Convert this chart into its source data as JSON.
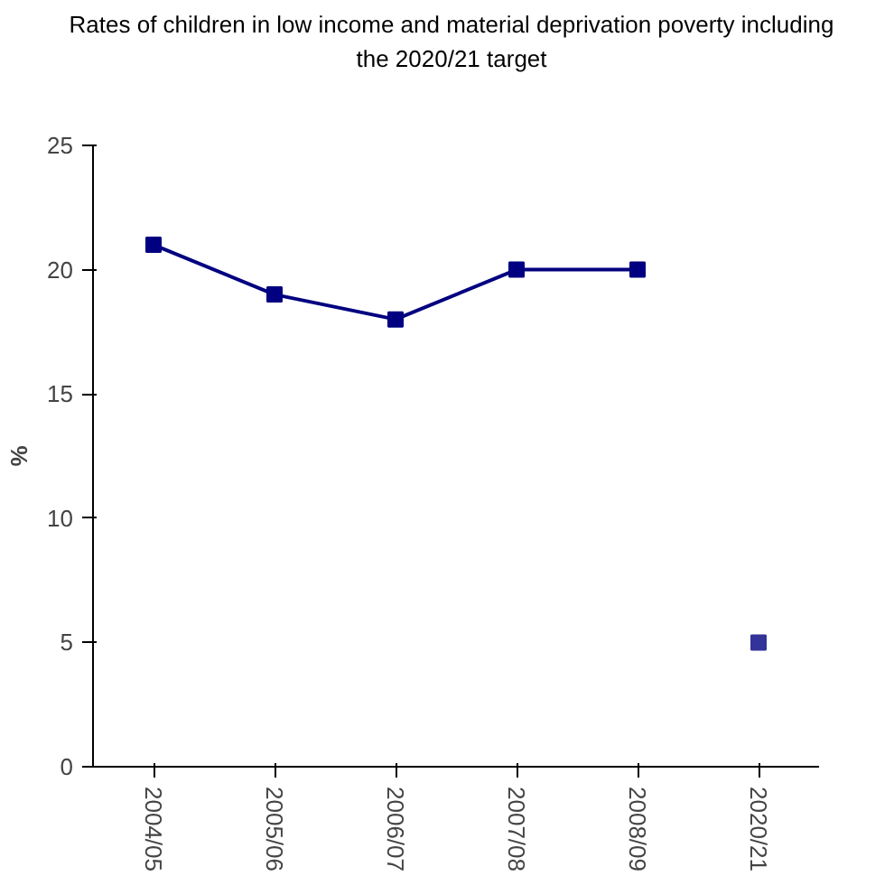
{
  "chart_data": {
    "type": "line",
    "title": "Rates of children in low income and material deprivation poverty including the 2020/21 target",
    "ylabel": "%",
    "categories": [
      "2004/05",
      "2005/06",
      "2006/07",
      "2007/08",
      "2008/09",
      "2020/21"
    ],
    "series": [
      {
        "color": "#000080",
        "values": [
          21,
          19,
          18,
          20,
          20,
          null
        ]
      },
      {
        "type": "scatter",
        "color": "#333399",
        "values": [
          null,
          null,
          null,
          null,
          null,
          5
        ]
      }
    ],
    "ylim": [
      0,
      25
    ],
    "yticks": [
      0,
      5,
      10,
      15,
      20,
      25
    ],
    "marker": "square",
    "line_style": "solid",
    "grid": false
  }
}
